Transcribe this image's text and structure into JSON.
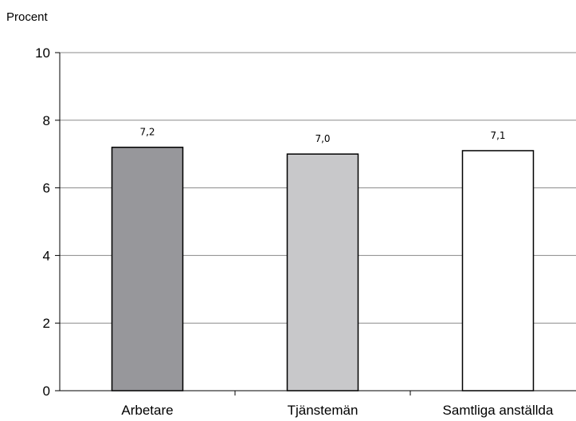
{
  "chart_data": {
    "type": "bar",
    "ylabel": "Procent",
    "categories": [
      "Arbetare",
      "Tjänstemän",
      "Samtliga anställda"
    ],
    "values": [
      7.2,
      7.0,
      7.1
    ],
    "value_labels": [
      "7,2",
      "7,0",
      "7,1"
    ],
    "bar_colors": [
      "#97979b",
      "#c8c8ca",
      "#ffffff"
    ],
    "ylim": [
      0,
      10
    ],
    "yticks": [
      0,
      2,
      4,
      6,
      8,
      10
    ],
    "grid": true
  }
}
